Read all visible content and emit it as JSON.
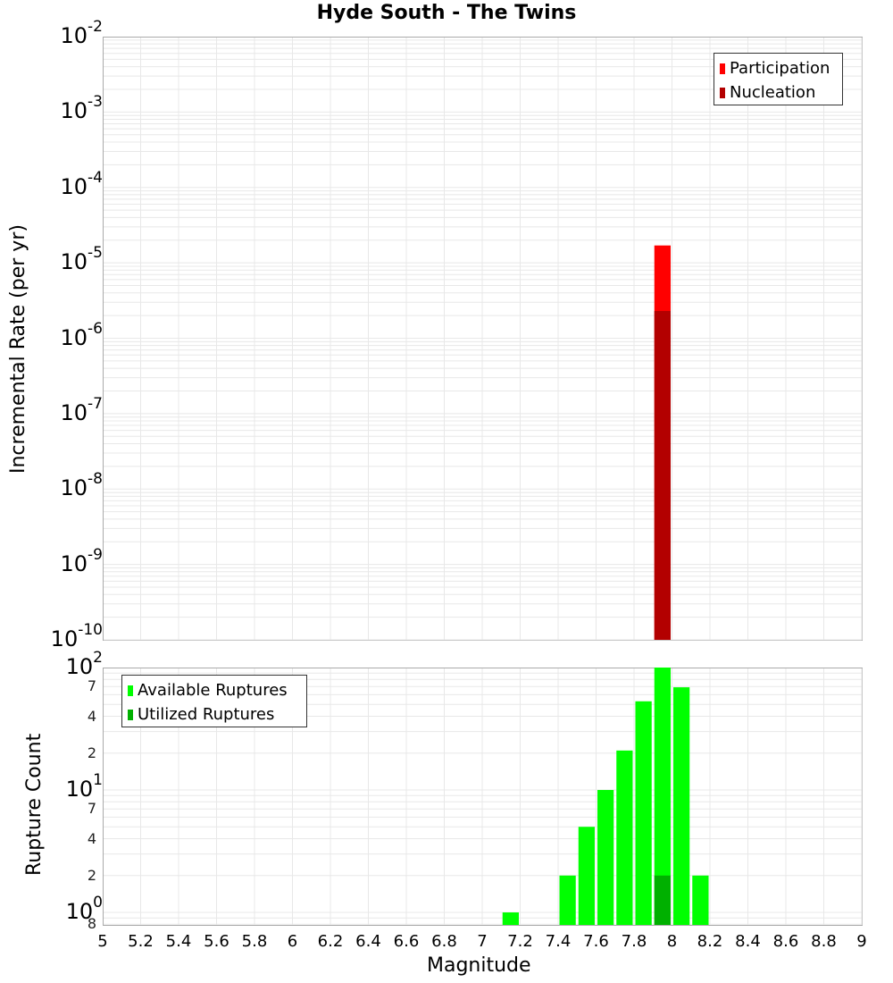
{
  "title": "Hyde South - The Twins",
  "colors": {
    "participation": "#ff0000",
    "nucleation": "#b30000",
    "available": "#00ff00",
    "utilized": "#00b000",
    "grid": "#e8e8e8",
    "axis": "#aaaaaa"
  },
  "top_plot": {
    "ylabel": "Incremental Rate (per yr)",
    "yticks": [
      {
        "base": "10",
        "exp": "-2"
      },
      {
        "base": "10",
        "exp": "-3"
      },
      {
        "base": "10",
        "exp": "-4"
      },
      {
        "base": "10",
        "exp": "-5"
      },
      {
        "base": "10",
        "exp": "-6"
      },
      {
        "base": "10",
        "exp": "-7"
      },
      {
        "base": "10",
        "exp": "-8"
      },
      {
        "base": "10",
        "exp": "-9"
      },
      {
        "base": "10",
        "exp": "-10"
      }
    ],
    "legend": [
      "Participation",
      "Nucleation"
    ]
  },
  "bottom_plot": {
    "ylabel": "Rupture Count",
    "major_ticks": [
      {
        "base": "10",
        "exp": "2"
      },
      {
        "base": "10",
        "exp": "1"
      },
      {
        "base": "10",
        "exp": "0"
      }
    ],
    "minor_ticks": [
      "7",
      "4",
      "2",
      "7",
      "4",
      "2",
      "8"
    ],
    "legend": [
      "Available Ruptures",
      "Utilized Ruptures"
    ]
  },
  "xaxis": {
    "label": "Magnitude",
    "ticks": [
      "5",
      "5.2",
      "5.4",
      "5.6",
      "5.8",
      "6",
      "6.2",
      "6.4",
      "6.6",
      "6.8",
      "7",
      "7.2",
      "7.4",
      "7.6",
      "7.8",
      "8",
      "8.2",
      "8.4",
      "8.6",
      "8.8",
      "9"
    ]
  },
  "chart_data": [
    {
      "type": "bar",
      "title": "Hyde South - The Twins",
      "xlabel": "Magnitude",
      "ylabel": "Incremental Rate (per yr)",
      "yscale": "log",
      "xlim": [
        5,
        9
      ],
      "ylim": [
        1e-10,
        0.01
      ],
      "legend_position": "top-right",
      "grid": true,
      "x": [
        7.95
      ],
      "series": [
        {
          "name": "Participation",
          "color": "#ff0000",
          "values": [
            1.7e-05
          ]
        },
        {
          "name": "Nucleation",
          "color": "#b30000",
          "values": [
            2.3e-06
          ]
        }
      ]
    },
    {
      "type": "bar",
      "xlabel": "Magnitude",
      "ylabel": "Rupture Count",
      "yscale": "log",
      "xlim": [
        5,
        9
      ],
      "ylim": [
        0.8,
        100
      ],
      "legend_position": "top-left",
      "grid": true,
      "x": [
        7.15,
        7.45,
        7.55,
        7.65,
        7.75,
        7.85,
        7.95,
        8.05,
        8.15
      ],
      "series": [
        {
          "name": "Available Ruptures",
          "color": "#00ff00",
          "values": [
            1,
            2,
            5,
            10,
            21,
            53,
            100,
            69,
            2
          ]
        },
        {
          "name": "Utilized Ruptures",
          "color": "#00b000",
          "values": [
            0,
            0,
            0,
            0,
            0,
            0,
            2,
            0,
            0
          ]
        }
      ]
    }
  ]
}
